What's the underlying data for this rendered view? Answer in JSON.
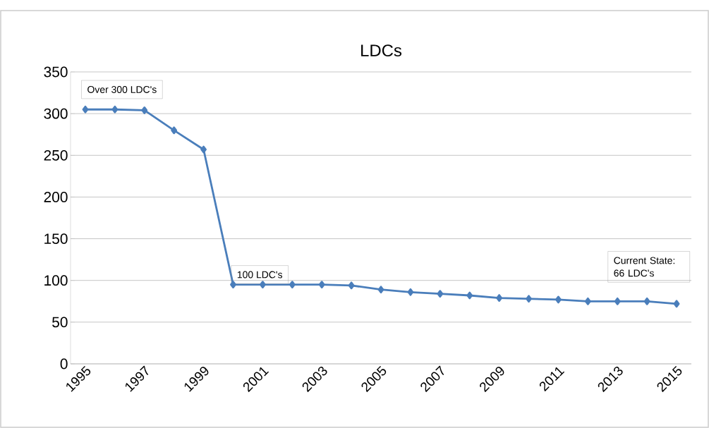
{
  "chart_data": {
    "type": "line",
    "title": "LDCs",
    "categories": [
      "1995",
      null,
      "1997",
      null,
      "1999",
      null,
      "2001",
      null,
      "2003",
      null,
      "2005",
      null,
      "2007",
      null,
      "2009",
      null,
      "2011",
      null,
      "2013",
      null,
      "2015"
    ],
    "series": [
      {
        "color": "#4a7ebb",
        "values": [
          305,
          305,
          304,
          280,
          257,
          95,
          95,
          95,
          95,
          94,
          89,
          86,
          84,
          82,
          79,
          78,
          77,
          75,
          75,
          75,
          72
        ]
      }
    ],
    "ylim": [
      0,
      350
    ],
    "yticks": [
      0,
      50,
      100,
      150,
      200,
      250,
      300,
      350
    ],
    "grid": "y",
    "marker": "diamond",
    "line_style": "solid",
    "annotations": [
      "Over 300 LDC's",
      "100 LDC's",
      "Current State: 66 LDC's"
    ]
  }
}
